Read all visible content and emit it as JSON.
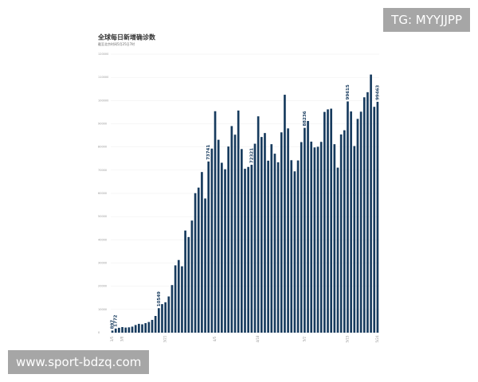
{
  "chart_data": {
    "type": "bar",
    "title": "全球每日新增确诊数",
    "subtitle": "截至北京时间5月25日7时",
    "categories": [
      "3/5",
      null,
      null,
      "3/8",
      null,
      null,
      null,
      null,
      null,
      null,
      null,
      null,
      null,
      null,
      null,
      null,
      "3/21",
      null,
      null,
      null,
      null,
      null,
      null,
      null,
      null,
      null,
      null,
      null,
      null,
      null,
      null,
      "4/5",
      null,
      null,
      null,
      null,
      null,
      null,
      null,
      null,
      null,
      null,
      null,
      null,
      "4/18",
      null,
      null,
      null,
      null,
      null,
      null,
      null,
      null,
      null,
      null,
      null,
      null,
      null,
      "5/2",
      null,
      null,
      null,
      null,
      null,
      null,
      null,
      null,
      null,
      null,
      null,
      null,
      "5/15",
      null,
      null,
      null,
      null,
      null,
      null,
      null,
      null,
      "5/24"
    ],
    "values": [
      897,
      1772,
      2100,
      2400,
      2200,
      2300,
      2600,
      3300,
      3800,
      3600,
      4100,
      4600,
      5500,
      7200,
      10549,
      12300,
      13100,
      15600,
      20500,
      29000,
      31300,
      28600,
      44000,
      41200,
      48300,
      60100,
      62500,
      69200,
      57800,
      73741,
      79300,
      95400,
      83100,
      73200,
      70400,
      80200,
      89000,
      85300,
      95700,
      79100,
      70600,
      71400,
      72321,
      81400,
      93200,
      84300,
      86000,
      74100,
      81200,
      77100,
      73400,
      86300,
      102500,
      88000,
      74300,
      69500,
      74200,
      82100,
      88236,
      91200,
      82300,
      79800,
      80100,
      82200,
      95100,
      96200,
      96500,
      81200,
      71100,
      85400,
      87200,
      99615,
      95300,
      80400,
      92100,
      95200,
      101400,
      103600,
      111200,
      97300,
      99463
    ],
    "value_labels": [
      "897",
      "1772",
      null,
      null,
      null,
      null,
      null,
      null,
      null,
      null,
      null,
      null,
      null,
      null,
      "10549",
      null,
      null,
      null,
      null,
      null,
      null,
      null,
      null,
      null,
      null,
      null,
      null,
      null,
      null,
      "73741",
      null,
      null,
      null,
      null,
      null,
      null,
      null,
      null,
      null,
      null,
      null,
      null,
      "72321",
      null,
      null,
      null,
      null,
      null,
      null,
      null,
      null,
      null,
      null,
      null,
      null,
      null,
      null,
      null,
      "88236",
      null,
      null,
      null,
      null,
      null,
      null,
      null,
      null,
      null,
      null,
      null,
      null,
      "99615",
      null,
      null,
      null,
      null,
      null,
      null,
      null,
      null,
      "99463"
    ],
    "color": "#173b5e",
    "ylim": [
      0,
      120000
    ],
    "yticks": [
      0,
      10000,
      20000,
      30000,
      40000,
      50000,
      60000,
      70000,
      80000,
      90000,
      100000,
      110000,
      120000
    ],
    "grid": true
  },
  "watermarks": {
    "top": "TG: MYYJJPP",
    "bottom": "www.sport-bdzq.com"
  }
}
